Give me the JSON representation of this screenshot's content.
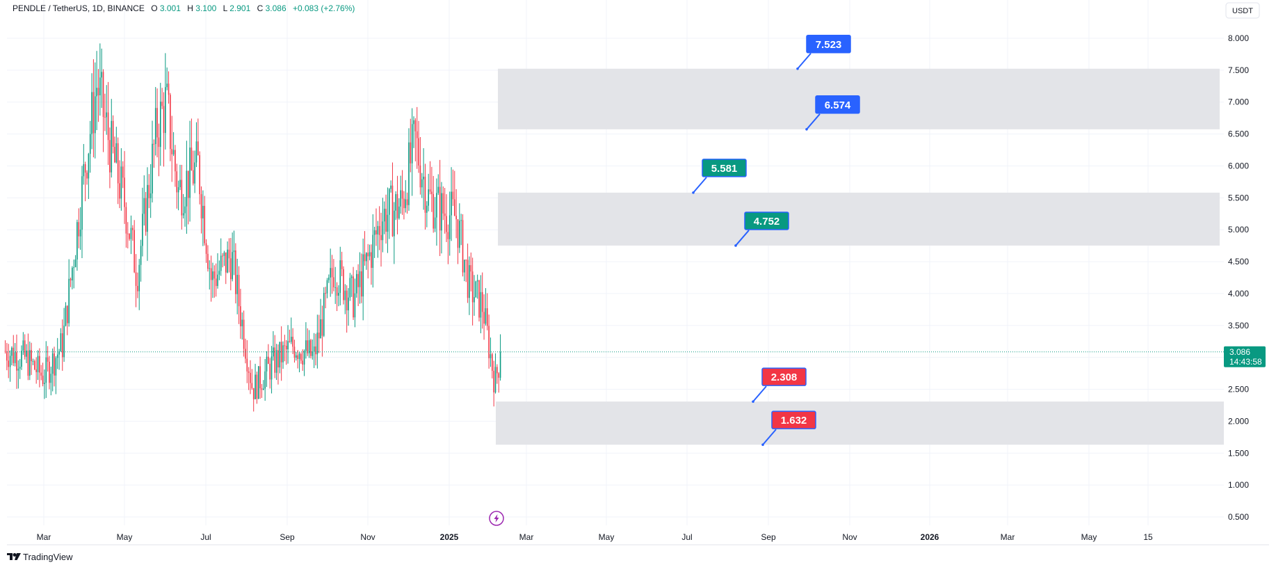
{
  "header": {
    "symbol": "PENDLE / TetherUS, 1D, BINANCE",
    "open_label": "O",
    "open": "3.001",
    "high_label": "H",
    "high": "3.100",
    "low_label": "L",
    "low": "2.901",
    "close_label": "C",
    "close": "3.086",
    "change": "+0.083 (+2.76%)"
  },
  "currency_button": "USDT",
  "price_badge": {
    "price": "3.086",
    "countdown": "14:43:58"
  },
  "branding": {
    "logo_text": "TradingView"
  },
  "colors": {
    "up": "#089981",
    "down": "#f23645",
    "zone_fill": "#e3e4e8",
    "tag_blue": "#2962ff",
    "tag_green": "#089981",
    "tag_red": "#f23645",
    "grid": "#f0f3fa",
    "price_line": "#089981"
  },
  "icons": {
    "flash": "lightning-icon",
    "logo": "tradingview-logo-icon"
  },
  "chart_data": {
    "type": "candlestick",
    "y_axis": {
      "ticks": [
        "8.000",
        "7.500",
        "7.000",
        "6.500",
        "6.000",
        "5.500",
        "5.000",
        "4.500",
        "4.000",
        "3.500",
        "2.500",
        "2.000",
        "1.500",
        "1.000",
        "0.500"
      ],
      "range": [
        0.25,
        8.3
      ]
    },
    "x_axis": {
      "ticks": [
        {
          "label": "Mar",
          "bold": false
        },
        {
          "label": "May",
          "bold": false
        },
        {
          "label": "Jul",
          "bold": false
        },
        {
          "label": "Sep",
          "bold": false
        },
        {
          "label": "Nov",
          "bold": false
        },
        {
          "label": "2025",
          "bold": true
        },
        {
          "label": "Mar",
          "bold": false
        },
        {
          "label": "May",
          "bold": false
        },
        {
          "label": "Jul",
          "bold": false
        },
        {
          "label": "Sep",
          "bold": false
        },
        {
          "label": "Nov",
          "bold": false
        },
        {
          "label": "2026",
          "bold": true
        },
        {
          "label": "Mar",
          "bold": false
        },
        {
          "label": "May",
          "bold": false
        },
        {
          "label": "15",
          "bold": false
        }
      ]
    },
    "current_price": 3.086,
    "price_path": [
      [
        "2024-02-01",
        3.1
      ],
      [
        "2024-02-15",
        3.0
      ],
      [
        "2024-03-01",
        2.7
      ],
      [
        "2024-03-15",
        3.2
      ],
      [
        "2024-04-01",
        6.0
      ],
      [
        "2024-04-10",
        7.3
      ],
      [
        "2024-04-20",
        6.3
      ],
      [
        "2024-05-01",
        5.4
      ],
      [
        "2024-05-10",
        4.3
      ],
      [
        "2024-05-25",
        6.6
      ],
      [
        "2024-06-01",
        7.0
      ],
      [
        "2024-06-10",
        5.6
      ],
      [
        "2024-06-25",
        6.0
      ],
      [
        "2024-07-05",
        4.2
      ],
      [
        "2024-07-20",
        4.6
      ],
      [
        "2024-08-05",
        2.5
      ],
      [
        "2024-08-20",
        2.9
      ],
      [
        "2024-09-05",
        3.2
      ],
      [
        "2024-09-20",
        3.0
      ],
      [
        "2024-10-05",
        4.4
      ],
      [
        "2024-10-20",
        3.9
      ],
      [
        "2024-11-01",
        4.6
      ],
      [
        "2024-11-10",
        5.2
      ],
      [
        "2024-11-25",
        5.4
      ],
      [
        "2024-12-05",
        6.4
      ],
      [
        "2024-12-15",
        5.5
      ],
      [
        "2024-12-25",
        5.3
      ],
      [
        "2025-01-05",
        5.2
      ],
      [
        "2025-01-15",
        4.1
      ],
      [
        "2025-01-25",
        3.8
      ],
      [
        "2025-02-03",
        2.6
      ],
      [
        "2025-02-08",
        3.086
      ]
    ],
    "zones": [
      {
        "name": "upper",
        "low": 6.574,
        "high": 7.523
      },
      {
        "name": "middle",
        "low": 4.752,
        "high": 5.581
      },
      {
        "name": "lower",
        "low": 1.632,
        "high": 2.308
      }
    ],
    "level_labels": [
      {
        "value": 7.523,
        "label": "7.523",
        "color": "blue"
      },
      {
        "value": 6.574,
        "label": "6.574",
        "color": "blue"
      },
      {
        "value": 5.581,
        "label": "5.581",
        "color": "green"
      },
      {
        "value": 4.752,
        "label": "4.752",
        "color": "green"
      },
      {
        "value": 2.308,
        "label": "2.308",
        "color": "red"
      },
      {
        "value": 1.632,
        "label": "1.632",
        "color": "red"
      }
    ]
  }
}
